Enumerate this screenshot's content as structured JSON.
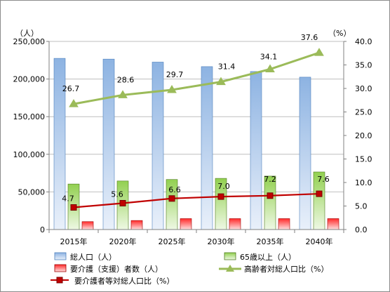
{
  "chart_data": {
    "type": "bar",
    "categories": [
      "2015年",
      "2020年",
      "2025年",
      "2030年",
      "2035年",
      "2040年"
    ],
    "left_axis": {
      "unit_label": "（人）",
      "ylim": [
        0,
        250000
      ],
      "ticks": [
        "0",
        "50,000",
        "100,000",
        "150,000",
        "200,000",
        "250,000"
      ],
      "tick_values": [
        0,
        50000,
        100000,
        150000,
        200000,
        250000
      ]
    },
    "right_axis": {
      "unit_label": "（%）",
      "ylim": [
        0,
        40
      ],
      "ticks": [
        "0.0",
        "5.0",
        "10.0",
        "15.0",
        "20.0",
        "25.0",
        "30.0",
        "35.0",
        "40.0"
      ],
      "tick_values": [
        0,
        5,
        10,
        15,
        20,
        25,
        30,
        35,
        40
      ]
    },
    "series": [
      {
        "name": "総人口（人）",
        "kind": "bar",
        "axis": "left",
        "color": "#8db3e2",
        "values": [
          227500,
          226500,
          222500,
          216500,
          210000,
          202500
        ]
      },
      {
        "name": "65歳以上（人）",
        "kind": "bar",
        "axis": "left",
        "color": "#92d050",
        "values": [
          60500,
          64500,
          66500,
          68000,
          71000,
          76500
        ]
      },
      {
        "name": "要介護（支援）者数（人）",
        "kind": "bar",
        "axis": "left",
        "color": "#ff3333",
        "values": [
          10500,
          12000,
          14500,
          14500,
          14500,
          14500
        ]
      },
      {
        "name": "高齢者対総人口比（%）",
        "kind": "line",
        "axis": "right",
        "color": "#9bbb59",
        "marker": "triangle",
        "values": [
          26.7,
          28.6,
          29.7,
          31.4,
          34.1,
          37.6
        ],
        "labels": [
          "26.7",
          "28.6",
          "29.7",
          "31.4",
          "34.1",
          "37.6"
        ]
      },
      {
        "name": "要介護者等対総人口比（%）",
        "kind": "line",
        "axis": "right",
        "color": "#c00000",
        "marker": "square",
        "values": [
          4.7,
          5.6,
          6.6,
          7.0,
          7.2,
          7.6
        ],
        "labels": [
          "4.7",
          "5.6",
          "6.6",
          "7.0",
          "7.2",
          "7.6"
        ]
      }
    ],
    "grid": true,
    "legend_position": "bottom"
  }
}
